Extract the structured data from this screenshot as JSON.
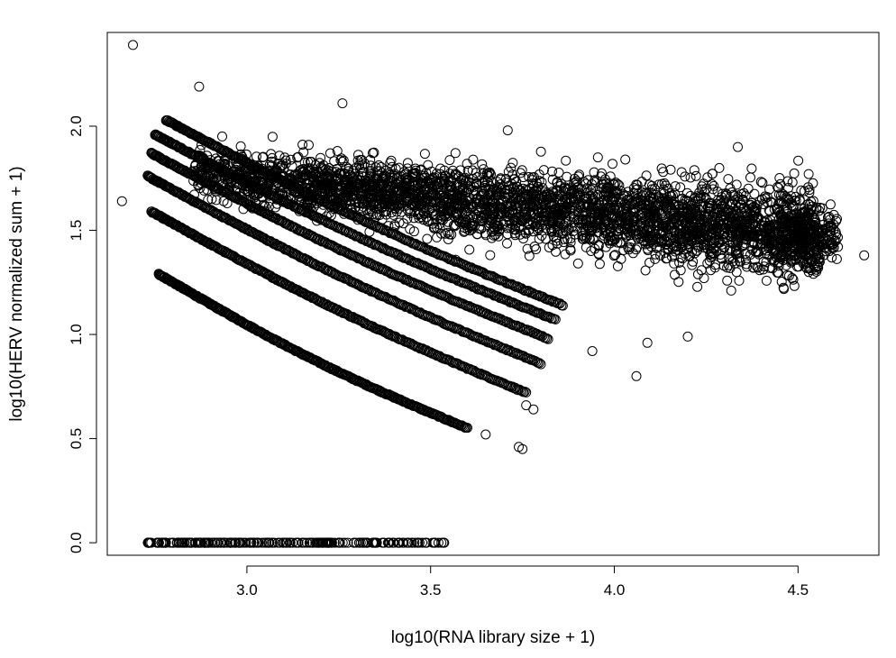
{
  "chart_data": {
    "type": "scatter",
    "title": "",
    "xlabel": "log10(RNA library size + 1)",
    "ylabel": "log10(HERV normalized sum + 1)",
    "xlim": [
      2.62,
      4.72
    ],
    "ylim": [
      -0.06,
      2.45
    ],
    "xticks": [
      "3.0",
      "3.5",
      "4.0",
      "4.5"
    ],
    "yticks": [
      "0.0",
      "0.5",
      "1.0",
      "1.5",
      "2.0"
    ],
    "grid": false,
    "legend": "none",
    "marker": "open-circle",
    "marker_color": "#000000",
    "components": {
      "zero_band": {
        "y": 0.0,
        "x_range": [
          2.73,
          3.54
        ]
      },
      "diagonal_bands": [
        {
          "x_start": 2.76,
          "y_start": 1.29,
          "x_end": 3.6,
          "y_end": 0.55
        },
        {
          "x_start": 2.74,
          "y_start": 1.59,
          "x_end": 3.76,
          "y_end": 0.72
        },
        {
          "x_start": 2.73,
          "y_start": 1.76,
          "x_end": 3.8,
          "y_end": 0.86
        },
        {
          "x_start": 2.74,
          "y_start": 1.87,
          "x_end": 3.82,
          "y_end": 0.98
        },
        {
          "x_start": 2.75,
          "y_start": 1.96,
          "x_end": 3.84,
          "y_end": 1.07
        },
        {
          "x_start": 2.78,
          "y_start": 2.03,
          "x_end": 3.86,
          "y_end": 1.14
        }
      ],
      "dense_cloud": {
        "x_range": [
          2.85,
          4.68
        ],
        "y_center_start": 1.78,
        "y_center_end": 1.47,
        "y_spread": 0.18
      },
      "outliers": [
        {
          "x": 2.69,
          "y": 2.39
        },
        {
          "x": 2.66,
          "y": 1.64
        },
        {
          "x": 2.87,
          "y": 2.19
        },
        {
          "x": 3.26,
          "y": 2.11
        },
        {
          "x": 3.71,
          "y": 1.98
        },
        {
          "x": 4.03,
          "y": 1.84
        },
        {
          "x": 4.68,
          "y": 1.38
        },
        {
          "x": 4.06,
          "y": 0.8
        },
        {
          "x": 4.2,
          "y": 0.99
        },
        {
          "x": 3.74,
          "y": 0.46
        },
        {
          "x": 3.75,
          "y": 0.45
        },
        {
          "x": 3.65,
          "y": 0.52
        },
        {
          "x": 3.78,
          "y": 0.64
        },
        {
          "x": 3.76,
          "y": 0.66
        },
        {
          "x": 4.09,
          "y": 0.96
        },
        {
          "x": 3.94,
          "y": 0.92
        }
      ]
    }
  }
}
